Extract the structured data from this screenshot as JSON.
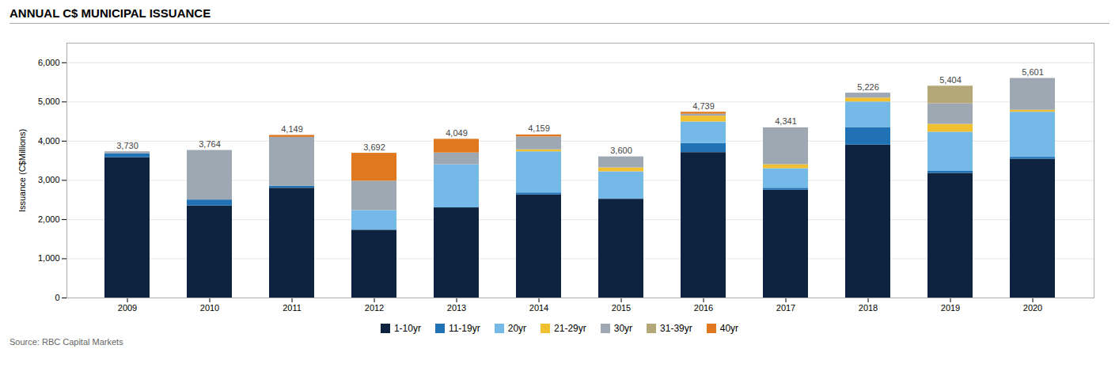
{
  "chart_data": {
    "type": "bar",
    "stacked": true,
    "title": "ANNUAL C$ MUNICIPAL ISSUANCE",
    "ylabel": "Issuance (C$Millions)",
    "source": "Source: RBC Capital Markets",
    "categories": [
      "2009",
      "2010",
      "2011",
      "2012",
      "2013",
      "2014",
      "2015",
      "2016",
      "2017",
      "2018",
      "2019",
      "2020"
    ],
    "series": [
      {
        "name": "1-10yr",
        "color": "#0d2340",
        "values": [
          3580,
          2350,
          2800,
          1730,
          2300,
          2630,
          2520,
          3710,
          2750,
          3900,
          3180,
          3540
        ]
      },
      {
        "name": "11-19yr",
        "color": "#2171b5",
        "values": [
          100,
          150,
          50,
          0,
          0,
          50,
          0,
          230,
          50,
          450,
          50,
          50
        ]
      },
      {
        "name": "20yr",
        "color": "#74b9e8",
        "values": [
          0,
          0,
          0,
          500,
          1100,
          1050,
          700,
          550,
          500,
          650,
          1000,
          1150
        ]
      },
      {
        "name": "21-29yr",
        "color": "#f0c030",
        "values": [
          0,
          0,
          0,
          0,
          0,
          50,
          100,
          150,
          100,
          100,
          200,
          50
        ]
      },
      {
        "name": "30yr",
        "color": "#9ea8b3",
        "values": [
          50,
          1264,
          1249,
          750,
          299,
          329,
          280,
          49,
          941,
          126,
          524,
          811
        ]
      },
      {
        "name": "31-39yr",
        "color": "#b5a878",
        "values": [
          0,
          0,
          0,
          0,
          0,
          0,
          0,
          0,
          0,
          0,
          450,
          0
        ]
      },
      {
        "name": "40yr",
        "color": "#e07820",
        "values": [
          0,
          0,
          50,
          712,
          350,
          50,
          0,
          50,
          0,
          0,
          0,
          0
        ]
      }
    ],
    "totals": [
      3730,
      3764,
      4149,
      3692,
      4049,
      4159,
      3600,
      4739,
      4341,
      5226,
      5404,
      5601
    ],
    "total_labels": [
      "3,730",
      "3,764",
      "4,149",
      "3,692",
      "4,049",
      "4,159",
      "3,600",
      "4,739",
      "4,341",
      "5,226",
      "5,404",
      "5,601"
    ],
    "ylim": [
      0,
      6500
    ],
    "yticks": [
      0,
      {
        "value": 1000,
        "label": "1,000"
      },
      {
        "value": 2000,
        "label": "2,000"
      },
      {
        "value": 3000,
        "label": "3,000"
      },
      {
        "value": 4000,
        "label": "4,000"
      },
      {
        "value": 5000,
        "label": "5,000"
      },
      {
        "value": 6000,
        "label": "6,000"
      }
    ],
    "grid": true,
    "legend": "bottom"
  }
}
